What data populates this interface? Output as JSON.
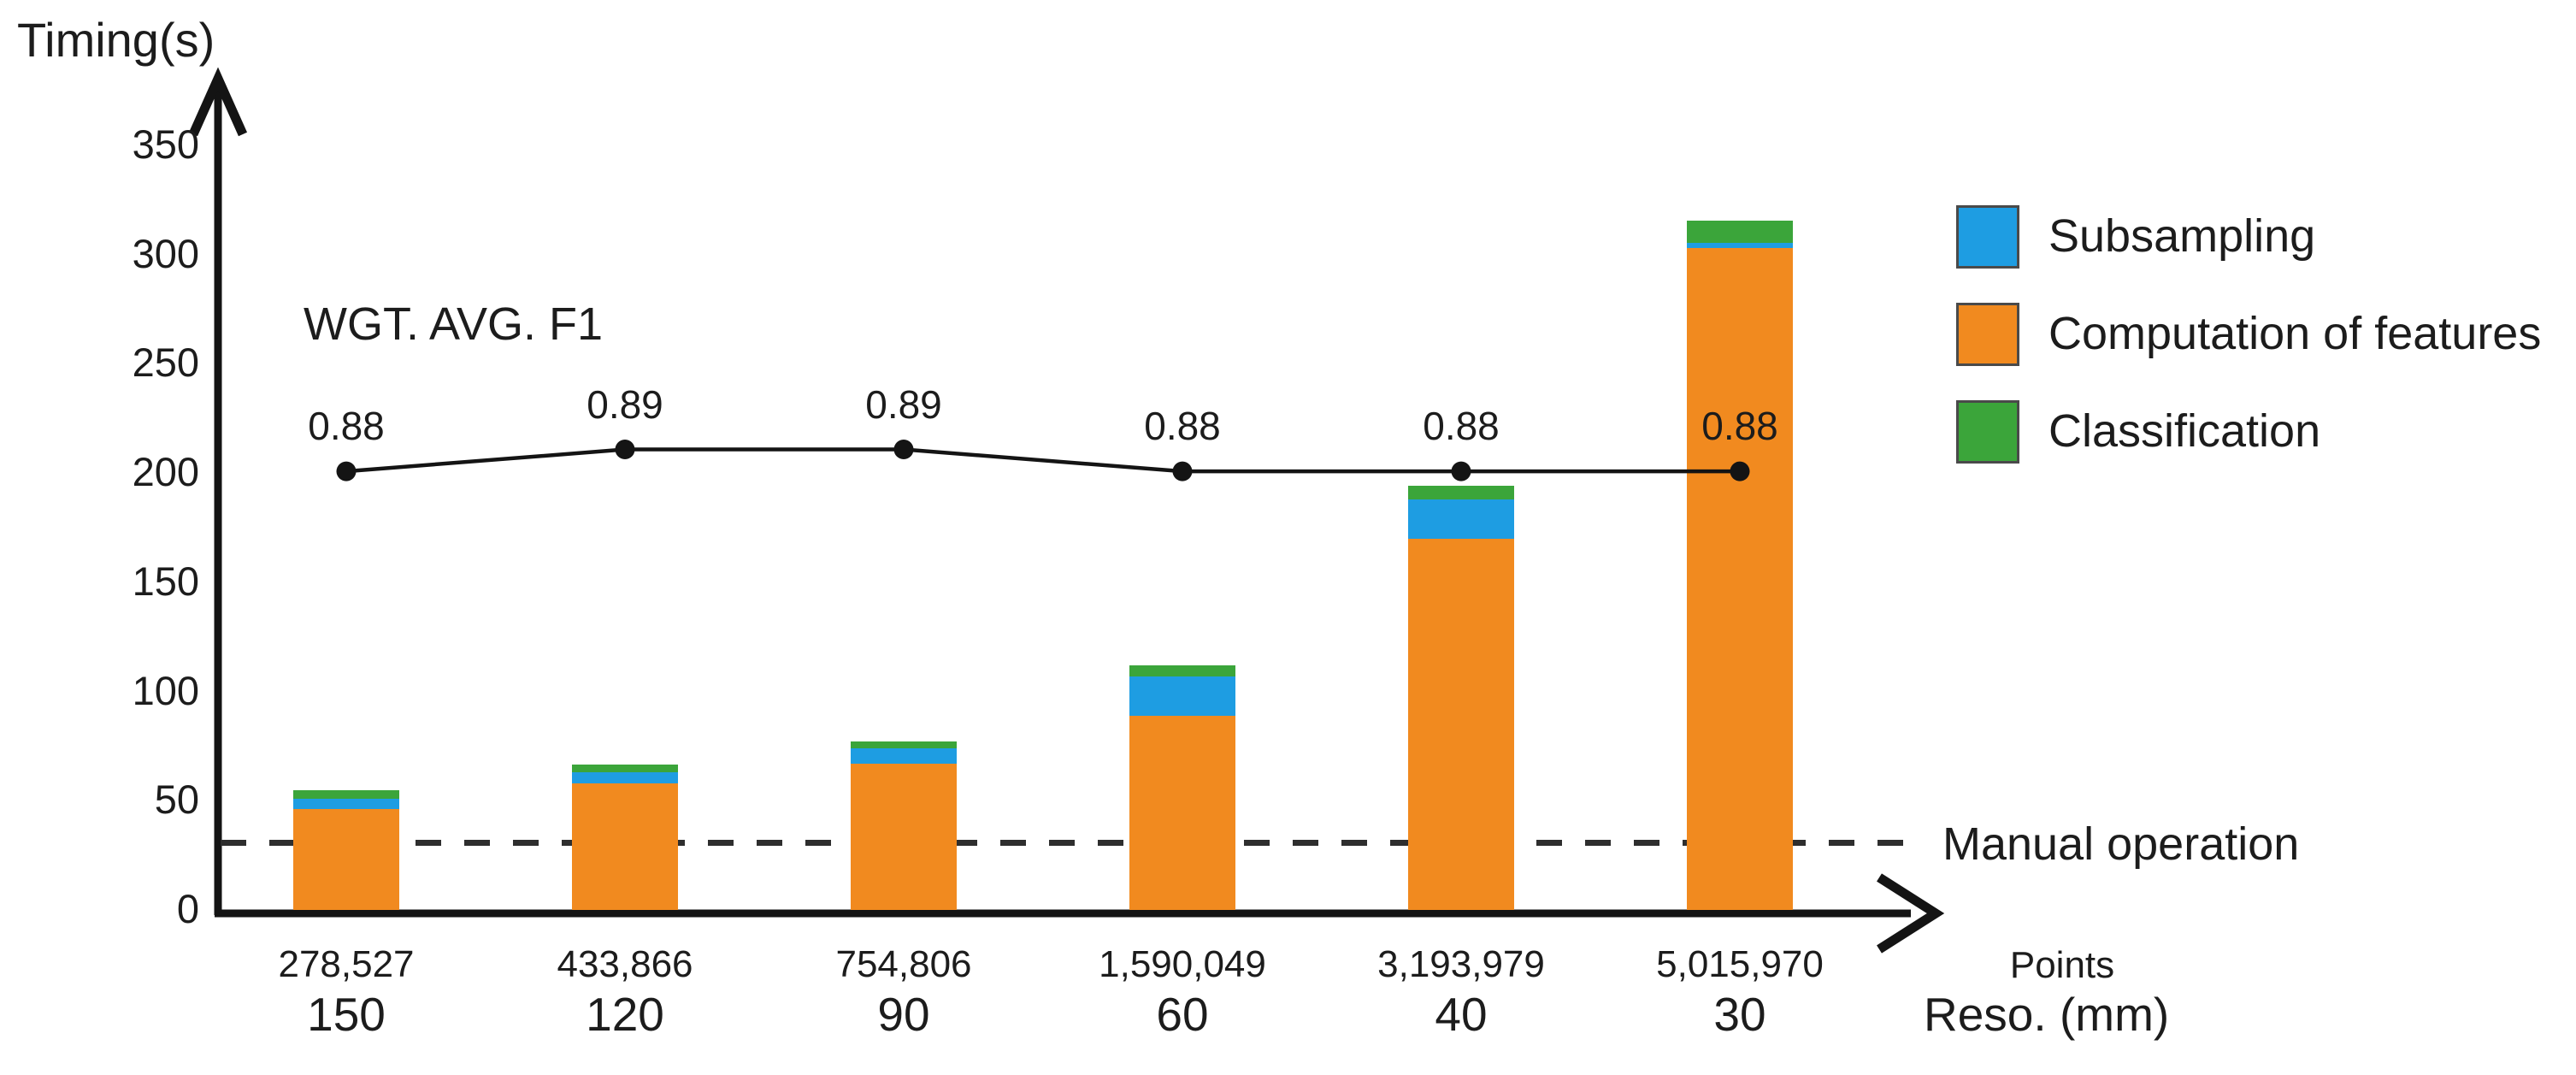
{
  "chart_data": {
    "type": "bar",
    "stacked": true,
    "title": "Timing(s)",
    "ylabel": "Timing(s)",
    "ylim": [
      0,
      350
    ],
    "y_ticks": [
      0,
      50,
      100,
      150,
      200,
      250,
      300,
      350
    ],
    "grid": false,
    "x_axis": {
      "points_label": "Points",
      "reso_label": "Reso. (mm)",
      "points": [
        "278,527",
        "433,866",
        "754,806",
        "1,590,049",
        "3,193,979",
        "5,015,970"
      ],
      "reso_mm": [
        "150",
        "120",
        "90",
        "60",
        "40",
        "30"
      ]
    },
    "series": [
      {
        "name": "Computation of features",
        "color": "#F18A1F",
        "values": [
          46,
          58,
          67,
          89,
          170,
          303
        ]
      },
      {
        "name": "Subsampling",
        "color": "#1E9DE2",
        "values": [
          5,
          5,
          7,
          18,
          18,
          2.5
        ]
      },
      {
        "name": "Classification",
        "color": "#3BA53A",
        "values": [
          4,
          3.5,
          3,
          5,
          6,
          10
        ]
      }
    ],
    "f1_line": {
      "label": "WGT. AVG. F1",
      "values": [
        "0.88",
        "0.89",
        "0.89",
        "0.88",
        "0.88",
        "0.88"
      ],
      "plotted_at_timing_axis": [
        200,
        210,
        210,
        200,
        200,
        200
      ],
      "color": "#141414"
    },
    "manual_line": {
      "label": "Manual operation",
      "timing_s": 30,
      "style": "dashed",
      "color": "#2e2e2e"
    },
    "legend": [
      {
        "label": "Subsampling",
        "color": "#1E9DE2"
      },
      {
        "label": "Computation of features",
        "color": "#F18A1F"
      },
      {
        "label": "Classification",
        "color": "#3BA53A"
      }
    ],
    "axis_color": "#141414"
  }
}
